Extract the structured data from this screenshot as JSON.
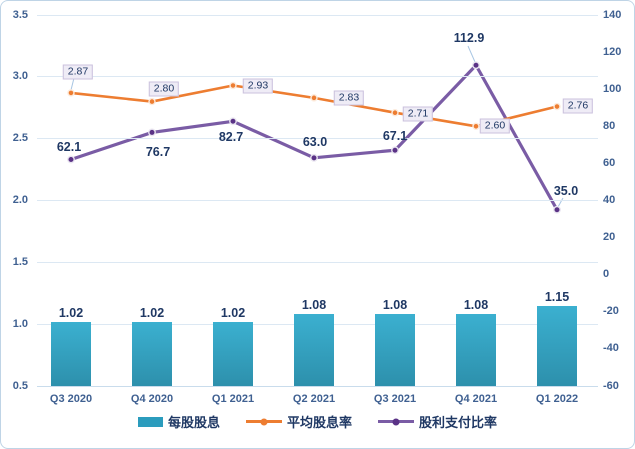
{
  "chart_data": {
    "type": "combo",
    "title": "",
    "categories": [
      "Q3 2020",
      "Q4 2020",
      "Q1 2021",
      "Q2 2021",
      "Q3 2021",
      "Q4 2021",
      "Q1 2022"
    ],
    "series": [
      {
        "name": "每股股息",
        "type": "bar",
        "axis": "left",
        "values": [
          1.02,
          1.02,
          1.02,
          1.08,
          1.08,
          1.08,
          1.15
        ],
        "labels": [
          "1.02",
          "1.02",
          "1.02",
          "1.08",
          "1.08",
          "1.08",
          "1.15"
        ],
        "color": "#2b9cbd"
      },
      {
        "name": "平均股息率",
        "type": "line",
        "axis": "left",
        "values": [
          2.87,
          2.8,
          2.93,
          2.83,
          2.71,
          2.6,
          2.76
        ],
        "labels": [
          "2.87",
          "2.80",
          "2.93",
          "2.83",
          "2.71",
          "2.60",
          "2.76"
        ],
        "color": "#ed7d31"
      },
      {
        "name": "股利支付比率",
        "type": "line",
        "axis": "right",
        "values": [
          62.1,
          76.7,
          82.7,
          63.0,
          67.1,
          112.9,
          35.0
        ],
        "labels": [
          "62.1",
          "76.7",
          "82.7",
          "63.0",
          "67.1",
          "112.9",
          "35.0"
        ],
        "color": "#7a5ca5"
      }
    ],
    "left_axis": {
      "min": 0.5,
      "max": 3.5,
      "step": 0.5,
      "ticks": [
        "0.5",
        "1.0",
        "1.5",
        "2.0",
        "2.5",
        "3.0",
        "3.5"
      ]
    },
    "right_axis": {
      "min": -60,
      "max": 140,
      "step": 20,
      "ticks": [
        "-60",
        "-40",
        "-20",
        "0",
        "20",
        "40",
        "60",
        "80",
        "100",
        "120",
        "140"
      ]
    },
    "grid": true,
    "legend_position": "bottom"
  },
  "colors": {
    "bar_top": "#3bb0d0",
    "bar_bottom": "#2d90ac",
    "orange_line": "#ed7d31",
    "orange_marker_ring": "#fceadb",
    "purple_line": "#7a5ca5",
    "purple_marker": "#5a3286",
    "purple_marker_ring": "#e9e5f0",
    "data_label": "#1f3864",
    "axis_label": "#3f6091",
    "gridline": "#dce8f3",
    "label_box_bg": "#efecf6",
    "label_box_border": "#cbc2dd",
    "leader_line": "#a9c6e3"
  }
}
